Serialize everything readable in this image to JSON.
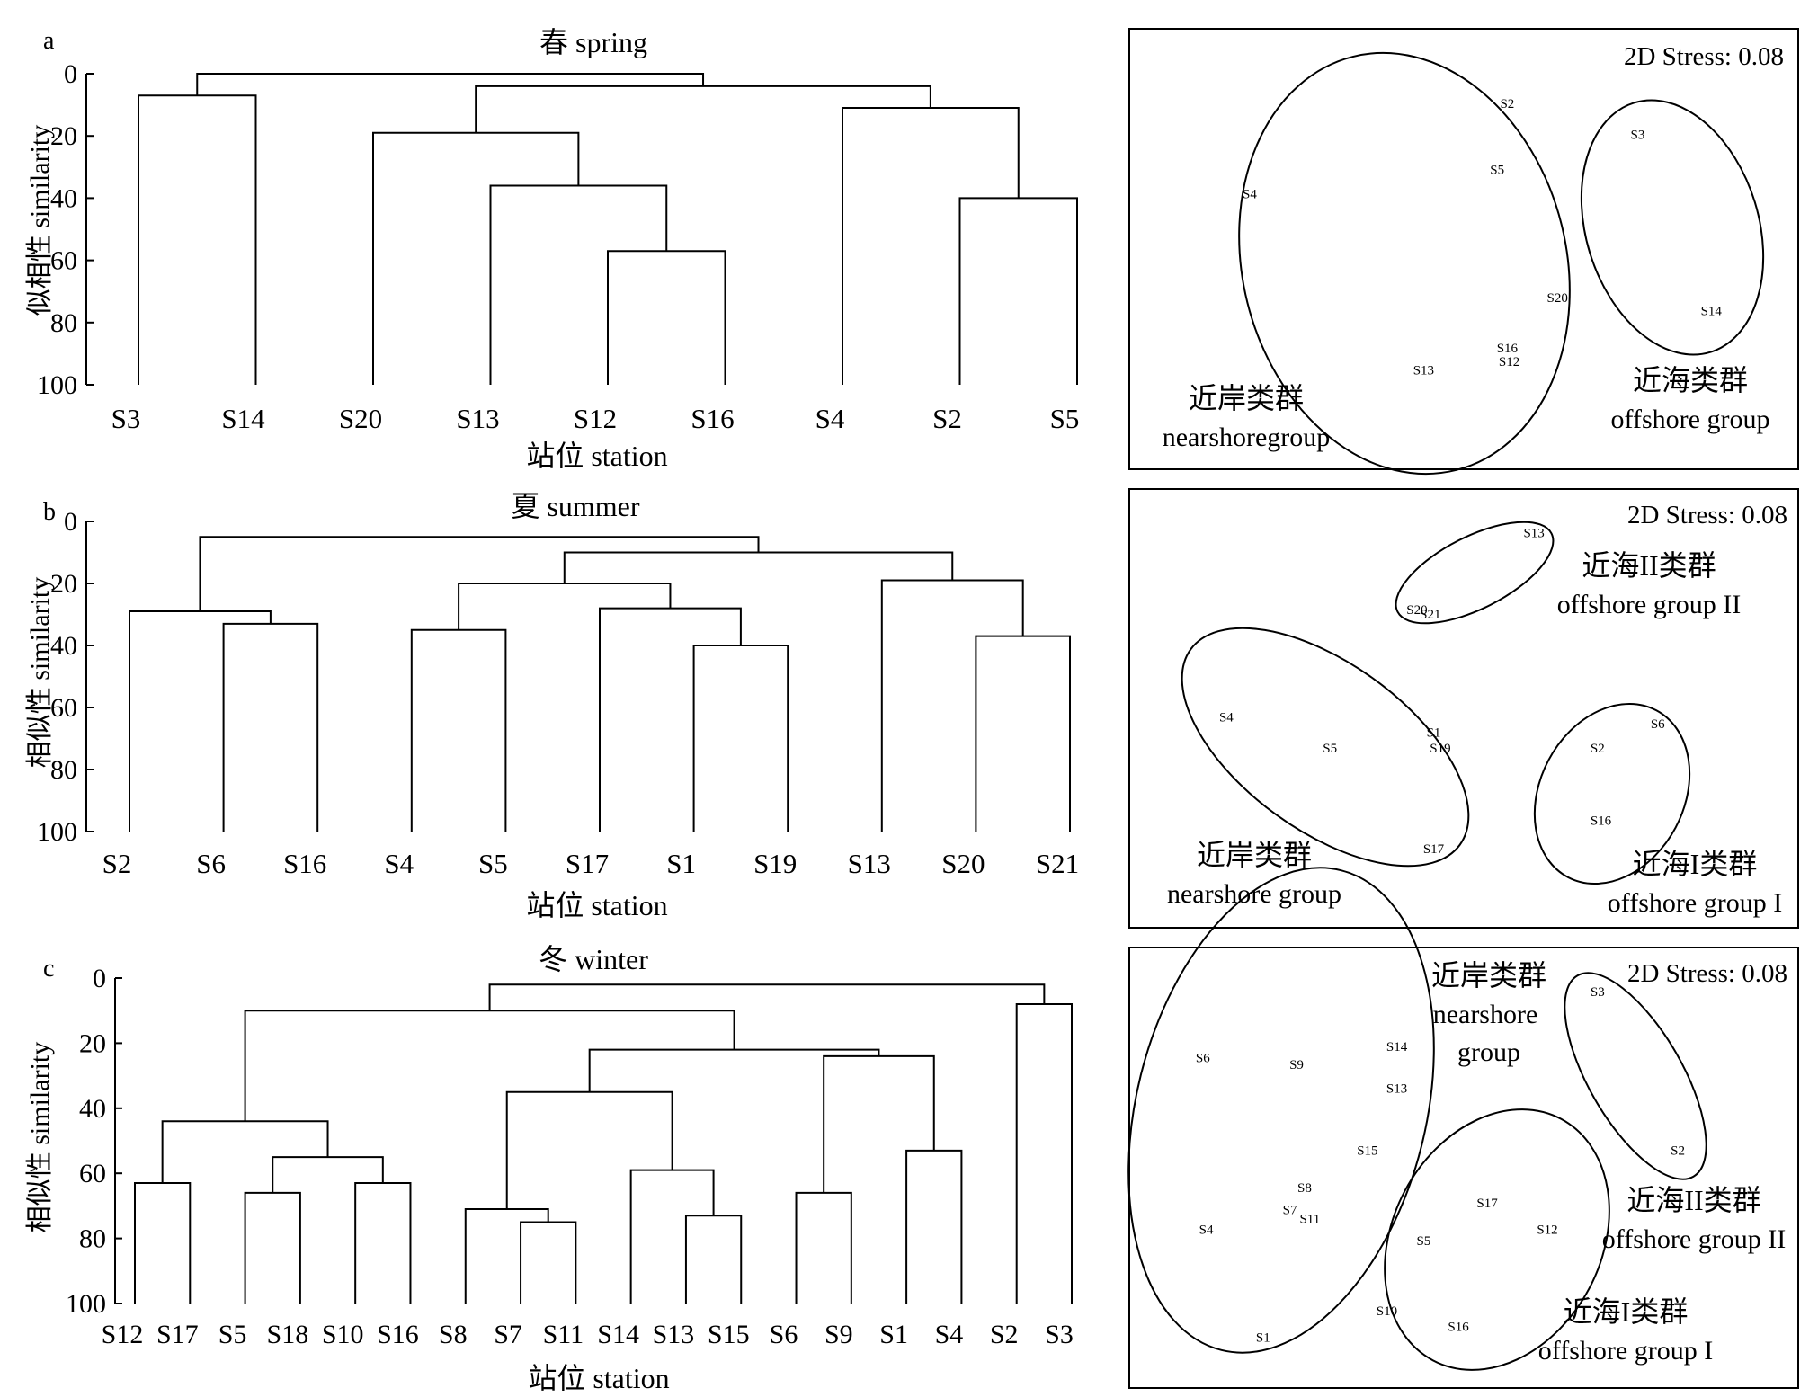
{
  "panel_letters": [
    "a",
    "b",
    "c"
  ],
  "chart_data": [
    {
      "type": "dendrogram",
      "panel": "a",
      "title": "春 spring",
      "xlabel": "站位 station",
      "ylabel": "似相性 similarity",
      "ylim": [
        0,
        100
      ],
      "yticks": [
        0,
        20,
        40,
        60,
        80,
        100
      ],
      "leaves": [
        "S3",
        "S14",
        "S20",
        "S13",
        "S12",
        "S16",
        "S4",
        "S2",
        "S5"
      ],
      "merges": [
        {
          "a": "S12",
          "b": "S16",
          "similarity": 57
        },
        {
          "a": "S13",
          "b": "m1",
          "similarity": 36
        },
        {
          "a": "S20",
          "b": "m2",
          "similarity": 19
        },
        {
          "a": "S2",
          "b": "S5",
          "similarity": 40
        },
        {
          "a": "S4",
          "b": "m4",
          "similarity": 11
        },
        {
          "a": "m3",
          "b": "m5",
          "similarity": 4
        },
        {
          "a": "S3",
          "b": "S14",
          "similarity": 7
        },
        {
          "a": "m7",
          "b": "m6",
          "similarity": 0
        }
      ]
    },
    {
      "type": "dendrogram",
      "panel": "b",
      "title": "夏 summer",
      "xlabel": "站位 station",
      "ylabel": "相似性 similarity",
      "ylim": [
        0,
        100
      ],
      "yticks": [
        0,
        20,
        40,
        60,
        80,
        100
      ],
      "leaves": [
        "S2",
        "S6",
        "S16",
        "S4",
        "S5",
        "S17",
        "S1",
        "S19",
        "S13",
        "S20",
        "S21"
      ],
      "merges": [
        {
          "a": "S6",
          "b": "S16",
          "similarity": 33
        },
        {
          "a": "S2",
          "b": "m1",
          "similarity": 29
        },
        {
          "a": "S4",
          "b": "S5",
          "similarity": 35
        },
        {
          "a": "S1",
          "b": "S19",
          "similarity": 40
        },
        {
          "a": "S17",
          "b": "m4",
          "similarity": 28
        },
        {
          "a": "m3",
          "b": "m5",
          "similarity": 20
        },
        {
          "a": "S20",
          "b": "S21",
          "similarity": 37
        },
        {
          "a": "S13",
          "b": "m7",
          "similarity": 19
        },
        {
          "a": "m6",
          "b": "m8",
          "similarity": 10
        },
        {
          "a": "m2",
          "b": "m9",
          "similarity": 5
        }
      ]
    },
    {
      "type": "dendrogram",
      "panel": "c",
      "title": "冬 winter",
      "xlabel": "站位 station",
      "ylabel": "相似性 similarity",
      "ylim": [
        0,
        100
      ],
      "yticks": [
        0,
        20,
        40,
        60,
        80,
        100
      ],
      "leaves": [
        "S12",
        "S17",
        "S5",
        "S18",
        "S10",
        "S16",
        "S8",
        "S7",
        "S11",
        "S14",
        "S13",
        "S15",
        "S6",
        "S9",
        "S1",
        "S4",
        "S2",
        "S3"
      ],
      "merges": [
        {
          "a": "S12",
          "b": "S17",
          "similarity": 63
        },
        {
          "a": "S5",
          "b": "S18",
          "similarity": 66
        },
        {
          "a": "S10",
          "b": "S16",
          "similarity": 63
        },
        {
          "a": "m2",
          "b": "m3",
          "similarity": 55
        },
        {
          "a": "m1",
          "b": "m4",
          "similarity": 44
        },
        {
          "a": "S7",
          "b": "S11",
          "similarity": 75
        },
        {
          "a": "S8",
          "b": "m6",
          "similarity": 71
        },
        {
          "a": "S13",
          "b": "S15",
          "similarity": 73
        },
        {
          "a": "S14",
          "b": "m8",
          "similarity": 59
        },
        {
          "a": "m7",
          "b": "m9",
          "similarity": 35
        },
        {
          "a": "S6",
          "b": "S9",
          "similarity": 66
        },
        {
          "a": "S1",
          "b": "S4",
          "similarity": 53
        },
        {
          "a": "m11",
          "b": "m12",
          "similarity": 24
        },
        {
          "a": "m10",
          "b": "m13",
          "similarity": 22
        },
        {
          "a": "m5",
          "b": "m14",
          "similarity": 10
        },
        {
          "a": "S2",
          "b": "S3",
          "similarity": 8
        },
        {
          "a": "m15",
          "b": "m16",
          "similarity": 2
        }
      ]
    },
    {
      "type": "scatter",
      "panel": "a",
      "stress_label": "2D Stress: 0.08",
      "points": [
        {
          "label": "S2",
          "x": 0.565,
          "y": 0.18
        },
        {
          "label": "S5",
          "x": 0.55,
          "y": 0.33
        },
        {
          "label": "S4",
          "x": 0.18,
          "y": 0.385
        },
        {
          "label": "S3",
          "x": 0.76,
          "y": 0.25
        },
        {
          "label": "S20",
          "x": 0.64,
          "y": 0.62
        },
        {
          "label": "S14",
          "x": 0.87,
          "y": 0.65
        },
        {
          "label": "S16",
          "x": 0.565,
          "y": 0.735
        },
        {
          "label": "S12",
          "x": 0.568,
          "y": 0.765
        },
        {
          "label": "S13",
          "x": 0.44,
          "y": 0.785
        }
      ],
      "groups": [
        {
          "name_cn": "近岸类群",
          "name_en": "nearshoregroup"
        },
        {
          "name_cn": "近海类群",
          "name_en": "offshore group"
        }
      ]
    },
    {
      "type": "scatter",
      "panel": "b",
      "stress_label": "2D Stress: 0.08",
      "points": [
        {
          "label": "S13",
          "x": 0.605,
          "y": 0.11
        },
        {
          "label": "S20",
          "x": 0.43,
          "y": 0.285
        },
        {
          "label": "S21",
          "x": 0.45,
          "y": 0.295
        },
        {
          "label": "S4",
          "x": 0.145,
          "y": 0.53
        },
        {
          "label": "S5",
          "x": 0.3,
          "y": 0.6
        },
        {
          "label": "S1",
          "x": 0.455,
          "y": 0.565
        },
        {
          "label": "S19",
          "x": 0.465,
          "y": 0.6
        },
        {
          "label": "S17",
          "x": 0.455,
          "y": 0.83
        },
        {
          "label": "S6",
          "x": 0.79,
          "y": 0.545
        },
        {
          "label": "S2",
          "x": 0.7,
          "y": 0.6
        },
        {
          "label": "S16",
          "x": 0.705,
          "y": 0.765
        }
      ],
      "groups": [
        {
          "name_cn": "近海II类群",
          "name_en": "offshore group II"
        },
        {
          "name_cn": "近岸类群",
          "name_en": "nearshore group"
        },
        {
          "name_cn": "近海I类群",
          "name_en": "offshore group I"
        }
      ]
    },
    {
      "type": "scatter",
      "panel": "c",
      "stress_label": "2D Stress: 0.08",
      "points": [
        {
          "label": "S3",
          "x": 0.7,
          "y": 0.11
        },
        {
          "label": "S2",
          "x": 0.82,
          "y": 0.47
        },
        {
          "label": "S6",
          "x": 0.11,
          "y": 0.26
        },
        {
          "label": "S9",
          "x": 0.25,
          "y": 0.275
        },
        {
          "label": "S14",
          "x": 0.4,
          "y": 0.235
        },
        {
          "label": "S13",
          "x": 0.4,
          "y": 0.33
        },
        {
          "label": "S15",
          "x": 0.356,
          "y": 0.47
        },
        {
          "label": "S8",
          "x": 0.262,
          "y": 0.555
        },
        {
          "label": "S7",
          "x": 0.24,
          "y": 0.605
        },
        {
          "label": "S11",
          "x": 0.27,
          "y": 0.625
        },
        {
          "label": "S4",
          "x": 0.115,
          "y": 0.65
        },
        {
          "label": "S1",
          "x": 0.2,
          "y": 0.895
        },
        {
          "label": "S17",
          "x": 0.535,
          "y": 0.59
        },
        {
          "label": "S12",
          "x": 0.625,
          "y": 0.65
        },
        {
          "label": "S5",
          "x": 0.44,
          "y": 0.675
        },
        {
          "label": "S10",
          "x": 0.385,
          "y": 0.835
        },
        {
          "label": "S16",
          "x": 0.492,
          "y": 0.87
        }
      ],
      "groups": [
        {
          "name_cn": "近岸类群",
          "name_en_1": "nearshore",
          "name_en_2": "group"
        },
        {
          "name_cn": "近海II类群",
          "name_en": "offshore group II"
        },
        {
          "name_cn": "近海I类群",
          "name_en": "offshore group I"
        }
      ]
    }
  ]
}
